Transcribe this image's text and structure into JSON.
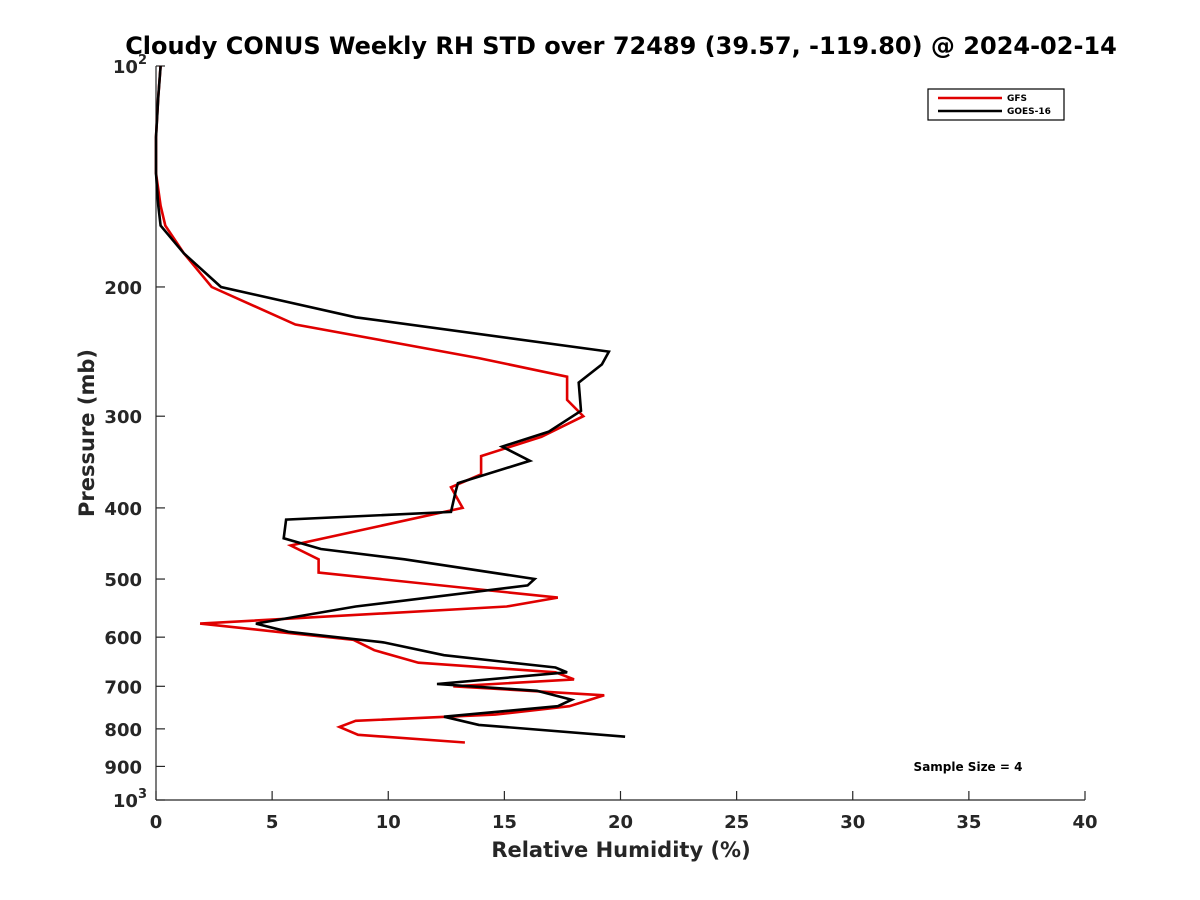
{
  "chart_data": {
    "type": "line",
    "title": "Cloudy CONUS Weekly RH STD over 72489 (39.57, -119.80) @ 2024-02-14",
    "xlabel": "Relative Humidity (%)",
    "ylabel": "Pressure (mb)",
    "xlim": [
      0,
      40
    ],
    "ylim": [
      100,
      1000
    ],
    "yscale": "log",
    "y_reversed": true,
    "x_ticks": [
      0,
      5,
      10,
      15,
      20,
      25,
      30,
      35,
      40
    ],
    "y_ticks": [
      100,
      200,
      300,
      400,
      500,
      600,
      700,
      800,
      900,
      1000
    ],
    "y_tick_labels": [
      {
        "base": "10",
        "exp": "2"
      },
      {
        "base": "200",
        "exp": ""
      },
      {
        "base": "300",
        "exp": ""
      },
      {
        "base": "400",
        "exp": ""
      },
      {
        "base": "500",
        "exp": ""
      },
      {
        "base": "600",
        "exp": ""
      },
      {
        "base": "700",
        "exp": ""
      },
      {
        "base": "800",
        "exp": ""
      },
      {
        "base": "900",
        "exp": ""
      },
      {
        "base": "10",
        "exp": "3"
      }
    ],
    "grid": false,
    "legend_position": "top-right",
    "annotation": "Sample Size = 4",
    "series": [
      {
        "name": "GFS",
        "color": "#e00000",
        "points": [
          [
            0.2,
            100
          ],
          [
            0.1,
            110
          ],
          [
            0.0,
            125
          ],
          [
            0.0,
            140
          ],
          [
            0.2,
            155
          ],
          [
            0.4,
            165
          ],
          [
            1.2,
            180
          ],
          [
            2.4,
            200
          ],
          [
            6.0,
            225
          ],
          [
            13.9,
            250
          ],
          [
            17.7,
            265
          ],
          [
            17.7,
            285
          ],
          [
            18.4,
            300
          ],
          [
            16.6,
            320
          ],
          [
            14.0,
            340
          ],
          [
            14.0,
            360
          ],
          [
            12.7,
            375
          ],
          [
            13.2,
            400
          ],
          [
            5.8,
            450
          ],
          [
            7.0,
            470
          ],
          [
            7.0,
            490
          ],
          [
            17.3,
            530
          ],
          [
            15.1,
            545
          ],
          [
            1.9,
            575
          ],
          [
            5.2,
            590
          ],
          [
            8.5,
            605
          ],
          [
            9.4,
            625
          ],
          [
            11.3,
            650
          ],
          [
            17.2,
            670
          ],
          [
            18.0,
            685
          ],
          [
            12.8,
            700
          ],
          [
            19.3,
            720
          ],
          [
            17.8,
            745
          ],
          [
            14.6,
            765
          ],
          [
            8.6,
            780
          ],
          [
            7.9,
            795
          ],
          [
            8.7,
            815
          ],
          [
            13.3,
            835
          ]
        ]
      },
      {
        "name": "GOES-16",
        "color": "#000000",
        "points": [
          [
            0.2,
            100
          ],
          [
            0.1,
            110
          ],
          [
            0.0,
            125
          ],
          [
            0.0,
            140
          ],
          [
            0.1,
            155
          ],
          [
            0.2,
            165
          ],
          [
            1.2,
            180
          ],
          [
            2.8,
            200
          ],
          [
            8.6,
            220
          ],
          [
            19.5,
            245
          ],
          [
            19.2,
            255
          ],
          [
            18.2,
            270
          ],
          [
            18.3,
            295
          ],
          [
            16.9,
            315
          ],
          [
            14.9,
            330
          ],
          [
            16.1,
            345
          ],
          [
            13.0,
            370
          ],
          [
            12.9,
            380
          ],
          [
            12.7,
            405
          ],
          [
            5.6,
            415
          ],
          [
            5.5,
            440
          ],
          [
            7.1,
            455
          ],
          [
            10.7,
            470
          ],
          [
            16.3,
            500
          ],
          [
            16.0,
            510
          ],
          [
            8.6,
            545
          ],
          [
            4.3,
            575
          ],
          [
            5.7,
            590
          ],
          [
            9.8,
            610
          ],
          [
            12.4,
            635
          ],
          [
            17.2,
            660
          ],
          [
            17.7,
            670
          ],
          [
            12.1,
            695
          ],
          [
            16.4,
            710
          ],
          [
            17.9,
            730
          ],
          [
            17.3,
            745
          ],
          [
            12.4,
            770
          ],
          [
            13.9,
            790
          ],
          [
            20.2,
            820
          ]
        ]
      }
    ]
  }
}
